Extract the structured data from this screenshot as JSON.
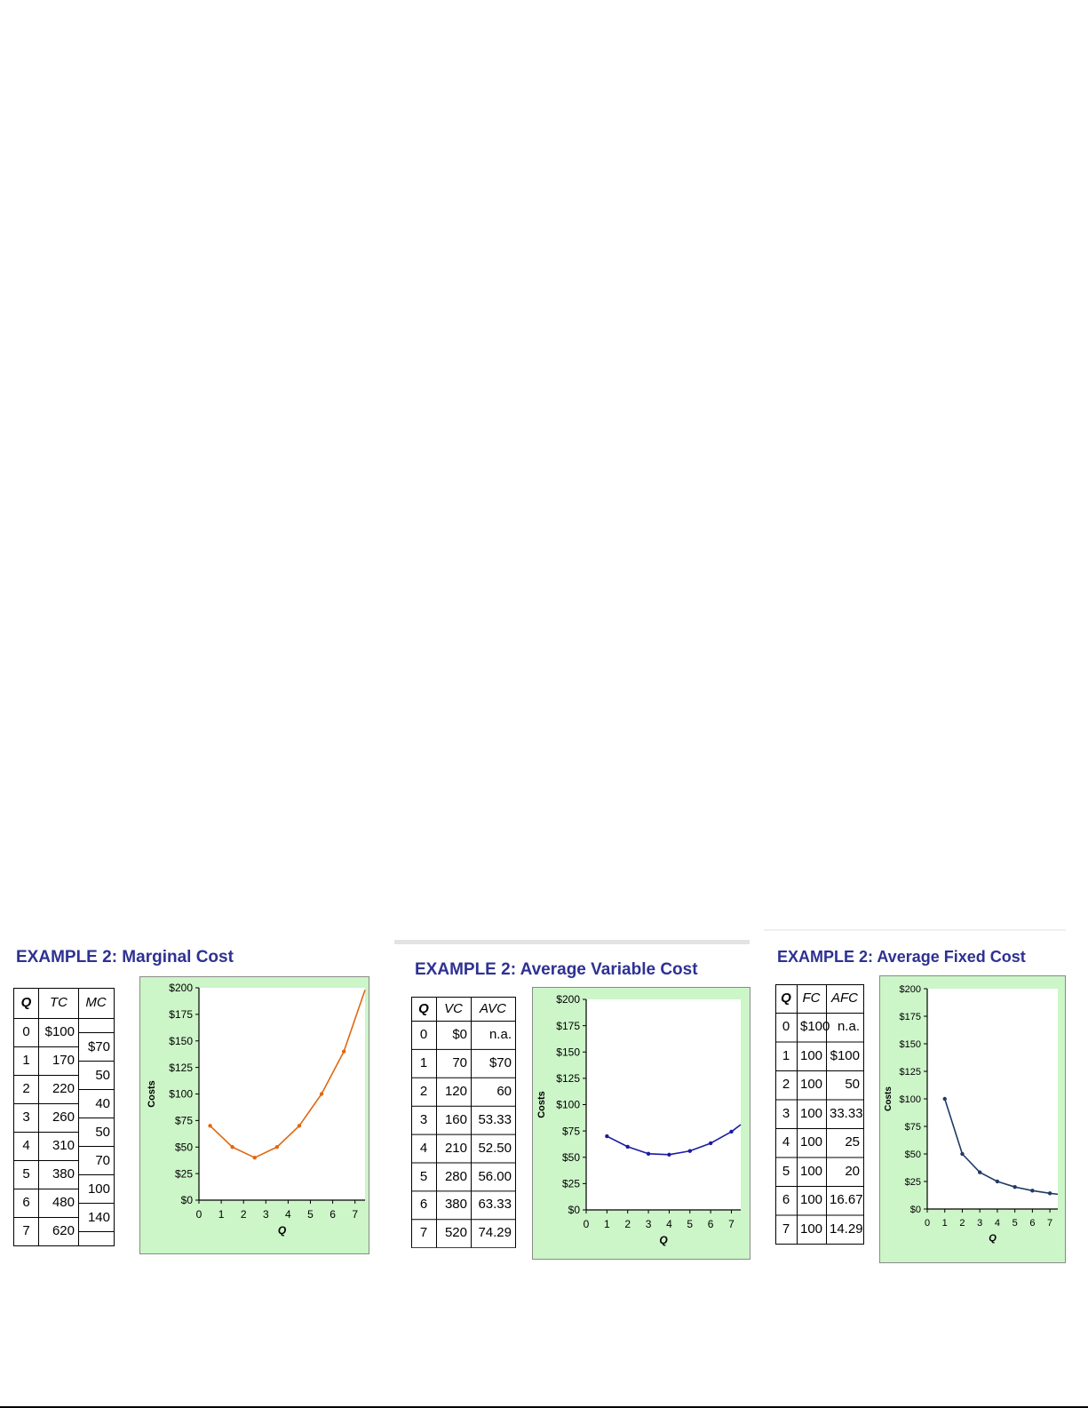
{
  "panels": [
    {
      "title": "EXAMPLE 2:  Marginal Cost",
      "table": {
        "headers": [
          "Q",
          "TC",
          "MC"
        ],
        "rows": [
          {
            "q": "0",
            "v": "$100"
          },
          {
            "q": "1",
            "v": "170"
          },
          {
            "q": "2",
            "v": "220"
          },
          {
            "q": "3",
            "v": "260"
          },
          {
            "q": "4",
            "v": "310"
          },
          {
            "q": "5",
            "v": "380"
          },
          {
            "q": "6",
            "v": "480"
          },
          {
            "q": "7",
            "v": "620"
          }
        ],
        "mc": [
          "$70",
          "50",
          "40",
          "50",
          "70",
          "100",
          "140"
        ]
      }
    },
    {
      "title": "EXAMPLE 2:  Average Variable Cost",
      "table": {
        "headers": [
          "Q",
          "VC",
          "AVC"
        ],
        "rows": [
          {
            "q": "0",
            "a": "$0",
            "b": "n.a."
          },
          {
            "q": "1",
            "a": "70",
            "b": "$70"
          },
          {
            "q": "2",
            "a": "120",
            "b": "60"
          },
          {
            "q": "3",
            "a": "160",
            "b": "53.33"
          },
          {
            "q": "4",
            "a": "210",
            "b": "52.50"
          },
          {
            "q": "5",
            "a": "280",
            "b": "56.00"
          },
          {
            "q": "6",
            "a": "380",
            "b": "63.33"
          },
          {
            "q": "7",
            "a": "520",
            "b": "74.29"
          }
        ]
      }
    },
    {
      "title": "EXAMPLE 2:  Average Fixed Cost",
      "table": {
        "headers": [
          "Q",
          "FC",
          "AFC"
        ],
        "rows": [
          {
            "q": "0",
            "a": "$100",
            "b": "n.a."
          },
          {
            "q": "1",
            "a": "100",
            "b": "$100"
          },
          {
            "q": "2",
            "a": "100",
            "b": "50"
          },
          {
            "q": "3",
            "a": "100",
            "b": "33.33"
          },
          {
            "q": "4",
            "a": "100",
            "b": "25"
          },
          {
            "q": "5",
            "a": "100",
            "b": "20"
          },
          {
            "q": "6",
            "a": "100",
            "b": "16.67"
          },
          {
            "q": "7",
            "a": "100",
            "b": "14.29"
          }
        ]
      }
    }
  ],
  "chart_data": [
    {
      "type": "line",
      "xlabel": "Q",
      "ylabel": "Costs",
      "xlim": [
        0,
        7.45
      ],
      "ylim": [
        0,
        200
      ],
      "xticks": [
        "0",
        "1",
        "2",
        "3",
        "4",
        "5",
        "6",
        "7"
      ],
      "yticks": [
        "$0",
        "$25",
        "$50",
        "$75",
        "$100",
        "$125",
        "$150",
        "$175",
        "$200"
      ],
      "grid": false,
      "series": [
        {
          "x": [
            0.5,
            1.5,
            2.5,
            3.5,
            4.5,
            5.5,
            6.5
          ],
          "y": [
            70,
            50,
            40,
            50,
            70,
            100,
            140
          ],
          "extend_to": [
            7.45,
            198
          ],
          "color": "#e0680f"
        }
      ]
    },
    {
      "type": "line",
      "xlabel": "Q",
      "ylabel": "Costs",
      "xlim": [
        0,
        7.45
      ],
      "ylim": [
        0,
        200
      ],
      "xticks": [
        "0",
        "1",
        "2",
        "3",
        "4",
        "5",
        "6",
        "7"
      ],
      "yticks": [
        "$0",
        "$25",
        "$50",
        "$75",
        "$100",
        "$125",
        "$150",
        "$175",
        "$200"
      ],
      "grid": false,
      "series": [
        {
          "x": [
            1,
            2,
            3,
            4,
            5,
            6,
            7
          ],
          "y": [
            70,
            60,
            53.33,
            52.5,
            56,
            63.33,
            74.29
          ],
          "extend_to": [
            7.45,
            81
          ],
          "color": "#1a1aa6"
        }
      ]
    },
    {
      "type": "line",
      "xlabel": "Q",
      "ylabel": "Costs",
      "xlim": [
        0,
        7.45
      ],
      "ylim": [
        0,
        200
      ],
      "xticks": [
        "0",
        "1",
        "2",
        "3",
        "4",
        "5",
        "6",
        "7"
      ],
      "yticks": [
        "$0",
        "$25",
        "$50",
        "$75",
        "$100",
        "$125",
        "$150",
        "$175",
        "$200"
      ],
      "grid": false,
      "series": [
        {
          "x": [
            1,
            2,
            3,
            4,
            5,
            6,
            7
          ],
          "y": [
            100,
            50,
            33.33,
            25,
            20,
            16.67,
            14.29
          ],
          "extend_to": [
            7.45,
            13.4
          ],
          "color": "#1f3a66"
        }
      ]
    }
  ]
}
